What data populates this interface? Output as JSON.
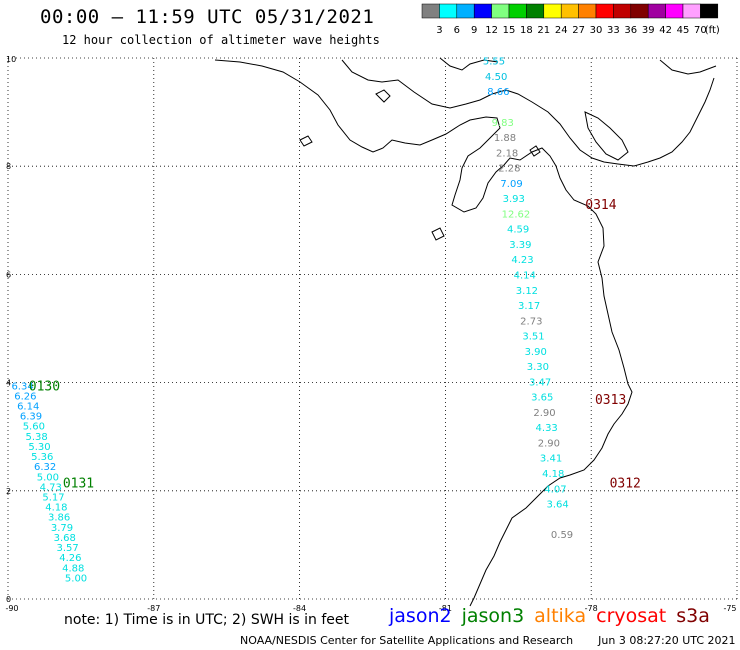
{
  "header": {
    "title": "00:00 – 11:59 UTC 05/31/2021",
    "subtitle": "12 hour collection of altimeter wave heights"
  },
  "colorbar": {
    "unit": "(ft)",
    "bins": [
      {
        "label": "3",
        "color": "#808080"
      },
      {
        "label": "6",
        "color": "#00ffff"
      },
      {
        "label": "9",
        "color": "#00b0ff"
      },
      {
        "label": "12",
        "color": "#0000ff"
      },
      {
        "label": "15",
        "color": "#80ff80"
      },
      {
        "label": "18",
        "color": "#00d000"
      },
      {
        "label": "21",
        "color": "#008000"
      },
      {
        "label": "24",
        "color": "#ffff00"
      },
      {
        "label": "27",
        "color": "#ffc000"
      },
      {
        "label": "30",
        "color": "#ff8000"
      },
      {
        "label": "33",
        "color": "#ff0000"
      },
      {
        "label": "36",
        "color": "#c00000"
      },
      {
        "label": "39",
        "color": "#800000"
      },
      {
        "label": "42",
        "color": "#a000a0"
      },
      {
        "label": "45",
        "color": "#ff00ff"
      },
      {
        "label": "70",
        "color": "#ffa0ff"
      },
      {
        "label": "",
        "color": "#000000"
      }
    ]
  },
  "map": {
    "lon_ticks": [
      "-90",
      "-87",
      "-84",
      "-81",
      "-78",
      "-75"
    ],
    "lat_ticks": [
      "0",
      "2",
      "4",
      "6",
      "8",
      "10"
    ],
    "lon_range": [
      -90,
      -75
    ],
    "lat_range": [
      0,
      10
    ]
  },
  "passes": [
    {
      "label": "0130",
      "color": "#008000",
      "lon": -89.25,
      "lat": 3.95
    },
    {
      "label": "0131",
      "color": "#008000",
      "lon": -88.55,
      "lat": 2.15
    },
    {
      "label": "0314",
      "color": "#800000",
      "lon": -77.8,
      "lat": 7.3
    },
    {
      "label": "0313",
      "color": "#800000",
      "lon": -77.6,
      "lat": 3.7
    },
    {
      "label": "0312",
      "color": "#800000",
      "lon": -77.3,
      "lat": 2.15
    }
  ],
  "track_east": {
    "start": {
      "lon": -80.0,
      "lat": 9.95
    },
    "end": {
      "lon": -78.6,
      "lat": 1.2
    },
    "points": [
      {
        "v": "5.55",
        "c": "#00c0e0"
      },
      {
        "v": "4.50",
        "c": "#00c0e0"
      },
      {
        "v": "8.66",
        "c": "#00a0ff"
      },
      {
        "v": "",
        "c": "#00a0ff"
      },
      {
        "v": "9.83",
        "c": "#80ff80"
      },
      {
        "v": "1.88",
        "c": "#808080"
      },
      {
        "v": "2.18",
        "c": "#808080"
      },
      {
        "v": "2.28",
        "c": "#808080"
      },
      {
        "v": "7.09",
        "c": "#00a0ff"
      },
      {
        "v": "3.93",
        "c": "#00e0e0"
      },
      {
        "v": "12.62",
        "c": "#80ff80"
      },
      {
        "v": "4.59",
        "c": "#00e0e0"
      },
      {
        "v": "3.39",
        "c": "#00e0e0"
      },
      {
        "v": "4.23",
        "c": "#00e0e0"
      },
      {
        "v": "4.14",
        "c": "#00e0e0"
      },
      {
        "v": "3.12",
        "c": "#00e0e0"
      },
      {
        "v": "3.17",
        "c": "#00e0e0"
      },
      {
        "v": "2.73",
        "c": "#808080"
      },
      {
        "v": "3.51",
        "c": "#00e0e0"
      },
      {
        "v": "3.90",
        "c": "#00e0e0"
      },
      {
        "v": "3.30",
        "c": "#00e0e0"
      },
      {
        "v": "3.47",
        "c": "#00e0e0"
      },
      {
        "v": "3.65",
        "c": "#00e0e0"
      },
      {
        "v": "2.90",
        "c": "#808080"
      },
      {
        "v": "4.33",
        "c": "#00e0e0"
      },
      {
        "v": "2.90",
        "c": "#808080"
      },
      {
        "v": "3.41",
        "c": "#00e0e0"
      },
      {
        "v": "4.18",
        "c": "#00e0e0"
      },
      {
        "v": "4.07",
        "c": "#00e0e0"
      },
      {
        "v": "3.64",
        "c": "#00e0e0"
      },
      {
        "v": "",
        "c": "#00e0e0"
      },
      {
        "v": "0.59",
        "c": "#808080"
      }
    ]
  },
  "track_west": {
    "start": {
      "lon": -89.7,
      "lat": 3.95
    },
    "end": {
      "lon": -88.6,
      "lat": 0.4
    },
    "points": [
      {
        "v": "6.34",
        "c": "#00a0ff"
      },
      {
        "v": "6.26",
        "c": "#00a0ff"
      },
      {
        "v": "6.14",
        "c": "#00a0ff"
      },
      {
        "v": "6.39",
        "c": "#00a0ff"
      },
      {
        "v": "5.60",
        "c": "#00e0e0"
      },
      {
        "v": "5.38",
        "c": "#00e0e0"
      },
      {
        "v": "5.30",
        "c": "#00e0e0"
      },
      {
        "v": "5.36",
        "c": "#00e0e0"
      },
      {
        "v": "6.32",
        "c": "#00a0ff"
      },
      {
        "v": "5.00",
        "c": "#00e0e0"
      },
      {
        "v": "4.73",
        "c": "#00e0e0"
      },
      {
        "v": "5.17",
        "c": "#00e0e0"
      },
      {
        "v": "4.18",
        "c": "#00e0e0"
      },
      {
        "v": "3.86",
        "c": "#00e0e0"
      },
      {
        "v": "3.79",
        "c": "#00e0e0"
      },
      {
        "v": "3.68",
        "c": "#00e0e0"
      },
      {
        "v": "3.57",
        "c": "#00e0e0"
      },
      {
        "v": "4.26",
        "c": "#00e0e0"
      },
      {
        "v": "4.88",
        "c": "#00e0e0"
      },
      {
        "v": "5.00",
        "c": "#00e0e0"
      }
    ]
  },
  "note": "note: 1) Time is in UTC; 2) SWH is in feet",
  "legend": [
    {
      "label": "jason2",
      "color": "#0000ff"
    },
    {
      "label": "jason3",
      "color": "#008000"
    },
    {
      "label": "altika",
      "color": "#ff8000"
    },
    {
      "label": "cryosat",
      "color": "#ff0000"
    },
    {
      "label": "s3a",
      "color": "#800000"
    }
  ],
  "footer": {
    "org": "NOAA/NESDIS Center for Satellite Applications and Research",
    "timestamp": "Jun  3 08:27:20 UTC 2021"
  }
}
